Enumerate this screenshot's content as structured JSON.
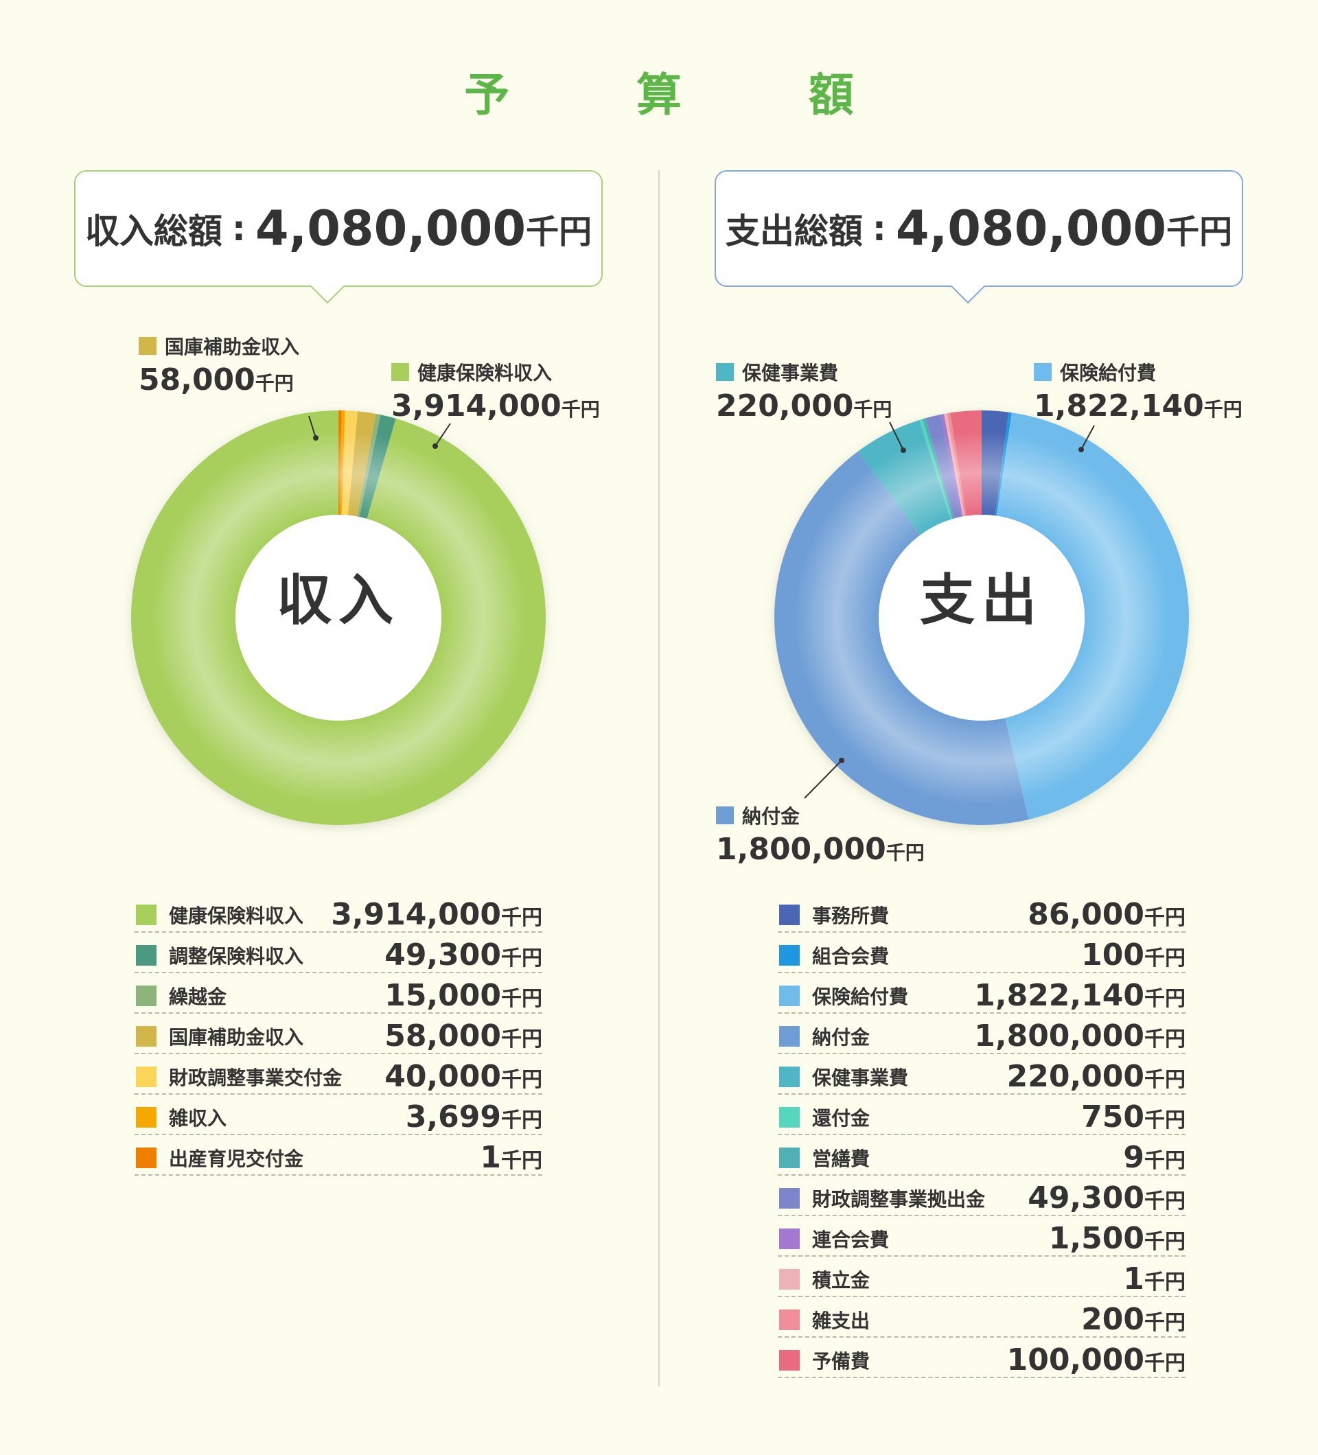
{
  "title": "予　算　額",
  "income": {
    "total_label": "収入総額",
    "total_value": "4,080,000",
    "unit": "千円",
    "center_label": "収入",
    "callouts": [
      {
        "name": "国庫補助金収入",
        "value": "58,000",
        "color": "#d2b64a"
      },
      {
        "name": "健康保険料収入",
        "value": "3,914,000",
        "color": "#a8cf5c"
      }
    ]
  },
  "expense": {
    "total_label": "支出総額",
    "total_value": "4,080,000",
    "unit": "千円",
    "center_label": "支出",
    "callouts": [
      {
        "name": "保健事業費",
        "value": "220,000",
        "color": "#4fb6c6"
      },
      {
        "name": "保険給付費",
        "value": "1,822,140",
        "color": "#6fbcec"
      },
      {
        "name": "納付金",
        "value": "1,800,000",
        "color": "#6f9ed6"
      }
    ]
  },
  "chart_data": [
    {
      "type": "pie",
      "unit": "千円",
      "categories": [
        "健康保険料収入",
        "調整保険料収入",
        "繰越金",
        "国庫補助金収入",
        "財政調整事業交付金",
        "雑収入",
        "出産育児交付金"
      ],
      "values": [
        3914000,
        49300,
        15000,
        58000,
        40000,
        3699,
        1
      ],
      "labels": [
        "3,914,000",
        "49,300",
        "15,000",
        "58,000",
        "40,000",
        "3,699",
        "1"
      ],
      "colors": [
        "#a8cf5c",
        "#4a9a82",
        "#8db47a",
        "#d2b64a",
        "#fbd55a",
        "#f5a800",
        "#f07f00"
      ]
    },
    {
      "type": "pie",
      "unit": "千円",
      "categories": [
        "事務所費",
        "組合会費",
        "保険給付費",
        "納付金",
        "保健事業費",
        "還付金",
        "営繕費",
        "財政調整事業拠出金",
        "連合会費",
        "積立金",
        "雑支出",
        "予備費"
      ],
      "values": [
        86000,
        100,
        1822140,
        1800000,
        220000,
        750,
        9,
        49300,
        1500,
        1,
        200,
        100000
      ],
      "labels": [
        "86,000",
        "100",
        "1,822,140",
        "1,800,000",
        "220,000",
        "750",
        "9",
        "49,300",
        "1,500",
        "1",
        "200",
        "100,000"
      ],
      "colors": [
        "#4a66b4",
        "#1e96e0",
        "#6fbcec",
        "#6f9ed6",
        "#4fb6c6",
        "#55d6be",
        "#4fb0b6",
        "#7d86cc",
        "#a478d0",
        "#eeb2b6",
        "#f08e9a",
        "#ea6a80"
      ]
    }
  ]
}
